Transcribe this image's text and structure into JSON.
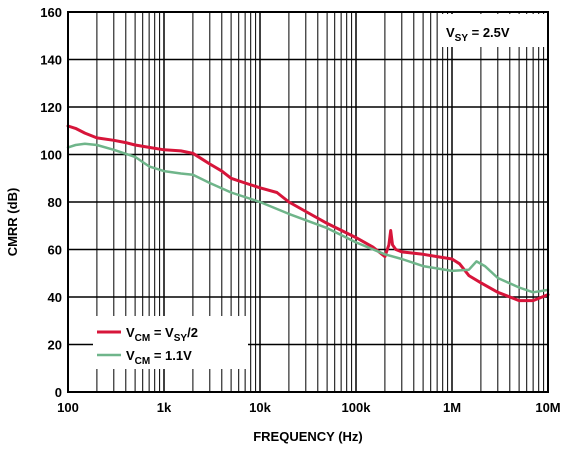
{
  "chart_data": {
    "type": "line",
    "xlabel": "FREQUENCY (Hz)",
    "ylabel": "CMRR (dB)",
    "x_scale": "log",
    "xlim": [
      100,
      10000000
    ],
    "ylim": [
      0,
      160
    ],
    "grid": true,
    "x_ticks": [
      {
        "value": 100,
        "label": "100"
      },
      {
        "value": 1000,
        "label": "1k"
      },
      {
        "value": 10000,
        "label": "10k"
      },
      {
        "value": 100000,
        "label": "100k"
      },
      {
        "value": 1000000,
        "label": "1M"
      },
      {
        "value": 10000000,
        "label": "10M"
      }
    ],
    "y_ticks": [
      {
        "value": 0,
        "label": "0"
      },
      {
        "value": 20,
        "label": "20"
      },
      {
        "value": 40,
        "label": "40"
      },
      {
        "value": 60,
        "label": "60"
      },
      {
        "value": 80,
        "label": "80"
      },
      {
        "value": 100,
        "label": "100"
      },
      {
        "value": 120,
        "label": "120"
      },
      {
        "value": 140,
        "label": "140"
      },
      {
        "value": 160,
        "label": "160"
      }
    ],
    "annotation": {
      "prefix": "V",
      "sub": "SY",
      "suffix": " = 2.5V"
    },
    "legend_position": "bottom-left",
    "series": [
      {
        "legend": {
          "prefix": "V",
          "sub": "CM",
          "mid": " = V",
          "sub2": "SY",
          "suffix": "/2"
        },
        "color": "#d7153a",
        "points": [
          [
            100,
            112
          ],
          [
            120,
            111
          ],
          [
            150,
            109
          ],
          [
            200,
            107
          ],
          [
            300,
            106
          ],
          [
            400,
            105
          ],
          [
            500,
            104
          ],
          [
            700,
            103
          ],
          [
            1000,
            102
          ],
          [
            1500,
            101.5
          ],
          [
            2000,
            100.5
          ],
          [
            2500,
            98
          ],
          [
            3000,
            96
          ],
          [
            4000,
            93
          ],
          [
            5000,
            90
          ],
          [
            7000,
            88
          ],
          [
            10000,
            86
          ],
          [
            15000,
            84
          ],
          [
            20000,
            80
          ],
          [
            30000,
            76
          ],
          [
            50000,
            71
          ],
          [
            100000,
            65
          ],
          [
            150000,
            61
          ],
          [
            180000,
            58.5
          ],
          [
            200000,
            57
          ],
          [
            220000,
            62
          ],
          [
            230000,
            68
          ],
          [
            240000,
            62
          ],
          [
            260000,
            60
          ],
          [
            300000,
            59
          ],
          [
            500000,
            58
          ],
          [
            700000,
            57
          ],
          [
            1000000,
            56
          ],
          [
            1200000,
            54
          ],
          [
            1500000,
            49
          ],
          [
            2000000,
            46
          ],
          [
            3000000,
            42
          ],
          [
            5000000,
            38.5
          ],
          [
            7000000,
            38.5
          ],
          [
            10000000,
            41
          ]
        ]
      },
      {
        "legend": {
          "prefix": "V",
          "sub": "CM",
          "suffix": " = 1.1V"
        },
        "color": "#6fb58a",
        "points": [
          [
            100,
            103
          ],
          [
            120,
            104
          ],
          [
            150,
            104.5
          ],
          [
            200,
            104
          ],
          [
            300,
            102
          ],
          [
            500,
            99
          ],
          [
            700,
            95
          ],
          [
            1000,
            93
          ],
          [
            1500,
            92
          ],
          [
            2000,
            91.5
          ],
          [
            3000,
            88
          ],
          [
            5000,
            84
          ],
          [
            10000,
            80
          ],
          [
            20000,
            75
          ],
          [
            50000,
            69
          ],
          [
            100000,
            63
          ],
          [
            200000,
            58
          ],
          [
            300000,
            56
          ],
          [
            500000,
            53
          ],
          [
            1000000,
            51
          ],
          [
            1500000,
            51.5
          ],
          [
            1800000,
            55
          ],
          [
            2200000,
            53
          ],
          [
            3000000,
            48
          ],
          [
            5000000,
            44
          ],
          [
            7000000,
            42
          ],
          [
            10000000,
            43
          ]
        ]
      }
    ]
  }
}
